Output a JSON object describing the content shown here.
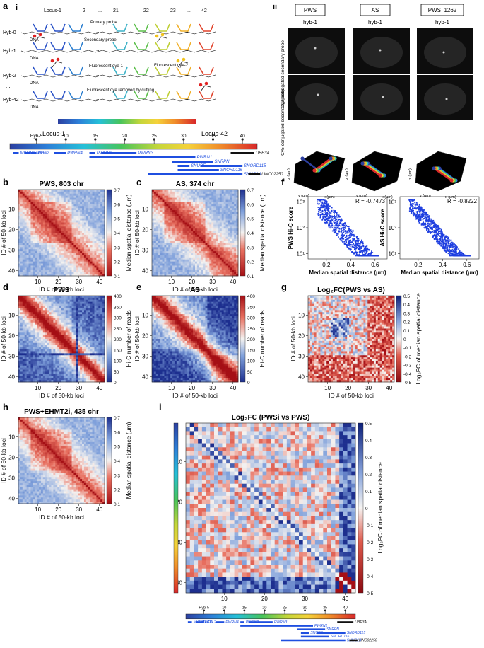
{
  "panel_labels": {
    "a": "a",
    "i": "i",
    "ii": "ii",
    "b": "b",
    "c": "c",
    "d": "d",
    "e": "e",
    "f": "f",
    "g": "g",
    "h": "h",
    "i2": "i"
  },
  "schematic": {
    "top_loci": [
      "Locus-1",
      "2",
      "...",
      "21",
      "22",
      "23",
      "...",
      "42"
    ],
    "hybs": [
      "Hyb-0",
      "Hyb-1",
      "Hyb-2",
      "...",
      "Hyb-42"
    ],
    "dna": "DNA",
    "dots": "...",
    "primary_probe": "Primary probe",
    "secondary_probe": "Secondary probe",
    "dye1": "Fluorescent dye-1",
    "dye2": "Fluorescent dye-2",
    "removed": "Fluorescent dye removed by cutting"
  },
  "locus_map": {
    "start": "Locus-1",
    "end": "Locus-42",
    "ticks": [
      "Hyb-5",
      "10",
      "15",
      "20",
      "25",
      "30",
      "35",
      "40"
    ],
    "genes": [
      "MKRN3",
      "MAGEL2",
      "NDN",
      "PWRN4",
      "PWRN2",
      "PWRN3",
      "PWRN1",
      "SNRPN",
      "SNURF",
      "SNORD116",
      "SNORD115",
      "SNHG14",
      "UBE3A",
      "LINC02250"
    ]
  },
  "imaging": {
    "columns": [
      "PWS",
      "AS",
      "PWS_1262"
    ],
    "hyb": "hyb-1",
    "row1": "Cy3-conjugated secondary probe",
    "row2": "Cy5-conjugated secondary probe",
    "scale": "5 μm",
    "axis_x": "x (μm)",
    "axis_y": "y (μm)",
    "axis_z": "z (μm)"
  },
  "heatmaps": {
    "b_title": "PWS, 803 chr",
    "c_title": "AS, 374 chr",
    "d_title": "PWS",
    "e_title": "AS",
    "g_title": "Log₂FC(PWS vs AS)",
    "h_title": "PWS+EHMT2i, 435 chr",
    "i_title": "Log₂FC (PWSi vs PWS)",
    "xlabel": "ID # of 50-kb loci",
    "ylabel": "ID # of 50-kb loci",
    "xticks": [
      "10",
      "20",
      "30",
      "40"
    ],
    "yticks": [
      "10",
      "20",
      "30",
      "40"
    ],
    "cb_dist_label": "Median spatial distance (μm)",
    "cb_dist_ticks": [
      "0.7",
      "0.6",
      "0.5",
      "0.4",
      "0.3",
      "0.2",
      "0.1"
    ],
    "cb_reads_label": "Hi-C number of reads",
    "cb_reads_ticks": [
      "400",
      "350",
      "300",
      "250",
      "200",
      "150",
      "100",
      "50",
      "0"
    ],
    "cb_fc_label_g": "Log₂FC of median spatial distance",
    "cb_fc_ticks_g": [
      "0.5",
      "0.4",
      "0.3",
      "0.2",
      "0.1",
      "0",
      "-0.1",
      "-0.2",
      "-0.3",
      "-0.4",
      "-0.5"
    ],
    "cb_fc_label_i": "Log₂FC of median spatial distance",
    "cb_fc_ticks_i": [
      "0.5",
      "0.4",
      "0.3",
      "0.2",
      "0.1",
      "0",
      "-0.1",
      "-0.2",
      "-0.3",
      "-0.4",
      "-0.5"
    ]
  },
  "chart_data": [
    {
      "type": "scatter",
      "ylabel": "PWS Hi-C score",
      "xlabel": "Median spatial distance (μm)",
      "annotation": "R = -0.7473",
      "xticks": [
        "0.2",
        "0.4",
        "0.6"
      ],
      "yticks": [
        "10³",
        "10²",
        "10¹"
      ],
      "xlim": [
        0.05,
        0.7
      ],
      "ylim_log10": [
        0.8,
        3.2
      ],
      "n_points": 861
    },
    {
      "type": "scatter",
      "ylabel": "AS Hi-C score",
      "xlabel": "Median spatial distance (μm)",
      "annotation": "R = -0.8222",
      "xticks": [
        "0.2",
        "0.4",
        "0.6"
      ],
      "yticks": [
        "10³",
        "10²",
        "10¹"
      ],
      "xlim": [
        0.05,
        0.7
      ],
      "ylim_log10": [
        0.8,
        3.2
      ],
      "n_points": 861
    }
  ],
  "colors": {
    "blue": "#0039cc",
    "red": "#b2182b"
  }
}
